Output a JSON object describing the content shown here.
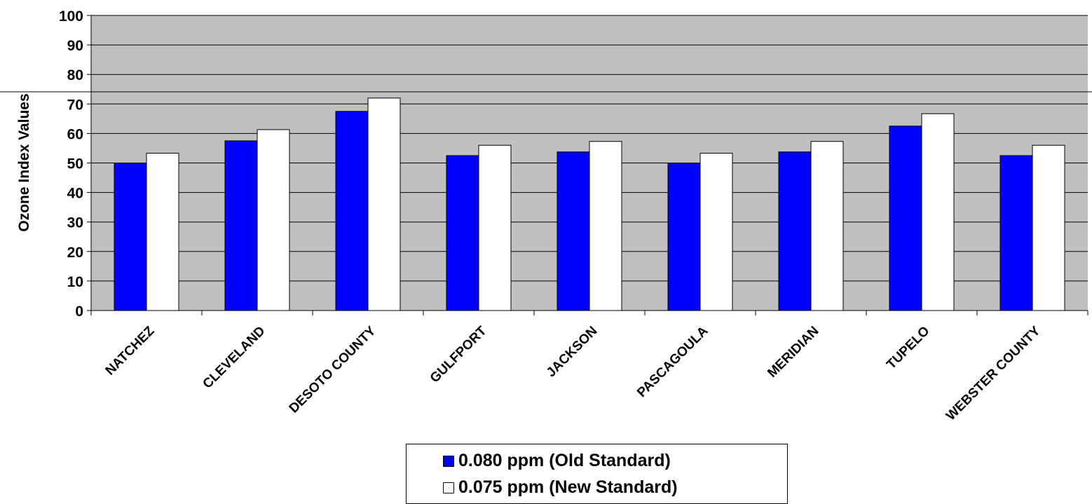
{
  "chart_data": {
    "type": "bar",
    "title": "",
    "xlabel": "",
    "ylabel": "Ozone Index Values",
    "ylim": [
      0,
      100
    ],
    "yticks": [
      0,
      10,
      20,
      30,
      40,
      50,
      60,
      70,
      80,
      90,
      100
    ],
    "grid": true,
    "legend_position": "bottom-center",
    "categories": [
      "NATCHEZ",
      "CLEVELAND",
      "DESOTO COUNTY",
      "GULFPORT",
      "JACKSON",
      "PASCAGOULA",
      "MERIDIAN",
      "TUPELO",
      "WEBSTER COUNTY"
    ],
    "series": [
      {
        "name": "0.080 ppm (Old Standard)",
        "color": "#0000ff",
        "values": [
          50.0,
          57.5,
          67.5,
          52.5,
          53.75,
          50.0,
          53.75,
          62.5,
          52.5
        ]
      },
      {
        "name": "0.075 ppm (New Standard)",
        "color": "#ffffff",
        "values": [
          53.3,
          61.3,
          72.0,
          56.0,
          57.3,
          53.3,
          57.3,
          66.7,
          56.0
        ]
      }
    ],
    "plot_background": "#c0c0c0"
  }
}
